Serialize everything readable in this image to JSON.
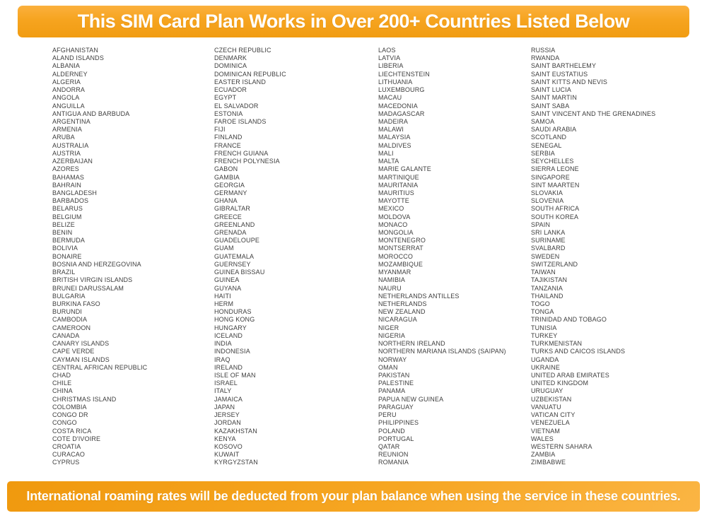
{
  "header": {
    "title": "This SIM Card Plan Works in Over 200+ Countries Listed Below"
  },
  "footer": {
    "note": "International roaming rates will be deducted from your plan balance when using the service in these countries."
  },
  "colors": {
    "banner_orange": "#f6a41f",
    "banner_orange_light": "#fbb03d",
    "banner_orange_dark": "#f0990e",
    "banner_text": "#ffffff",
    "country_text": "#3e3e3e",
    "page_background": "#ffffff"
  },
  "country_columns": {
    "col1": [
      "AFGHANISTAN",
      "ALAND ISLANDS",
      "ALBANIA",
      "ALDERNEY",
      "ALGERIA",
      "ANDORRA",
      "ANGOLA",
      "ANGUILLA",
      "ANTIGUA AND BARBUDA",
      "ARGENTINA",
      "ARMENIA",
      "ARUBA",
      "AUSTRALIA",
      "AUSTRIA",
      "AZERBAIJAN",
      "AZORES",
      "BAHAMAS",
      "BAHRAIN",
      "BANGLADESH",
      "BARBADOS",
      "BELARUS",
      "BELGIUM",
      "BELIZE",
      "BENIN",
      "BERMUDA",
      "BOLIVIA",
      "BONAIRE",
      "BOSNIA AND HERZEGOVINA",
      "BRAZIL",
      "BRITISH VIRGIN ISLANDS",
      "BRUNEI DARUSSALAM",
      "BULGARIA",
      "BURKINA FASO",
      "BURUNDI",
      "CAMBODIA",
      "CAMEROON",
      "CANADA",
      "CANARY ISLANDS",
      "CAPE VERDE",
      "CAYMAN ISLANDS",
      "CENTRAL AFRICAN REPUBLIC",
      "CHAD",
      "CHILE",
      "CHINA",
      "CHRISTMAS ISLAND",
      "COLOMBIA",
      "CONGO DR",
      "CONGO",
      "COSTA RICA",
      "COTE D'IVOIRE",
      "CROATIA",
      "CURACAO",
      "CYPRUS"
    ],
    "col2": [
      "CZECH REPUBLIC",
      "DENMARK",
      "DOMINICA",
      "DOMINICAN REPUBLIC",
      "EASTER ISLAND",
      "ECUADOR",
      "EGYPT",
      "EL SALVADOR",
      "ESTONIA",
      "FAROE ISLANDS",
      "FIJI",
      "FINLAND",
      "FRANCE",
      "FRENCH GUIANA",
      "FRENCH POLYNESIA",
      "GABON",
      "GAMBIA",
      "GEORGIA",
      "GERMANY",
      "GHANA",
      "GIBRALTAR",
      "GREECE",
      "GREENLAND",
      "GRENADA",
      "GUADELOUPE",
      "GUAM",
      "GUATEMALA",
      "GUERNSEY",
      "GUINEA BISSAU",
      "GUINEA",
      "GUYANA",
      "HAITI",
      "HERM",
      "HONDURAS",
      "HONG KONG",
      "HUNGARY",
      "ICELAND",
      "INDIA",
      "INDONESIA",
      "IRAQ",
      "IRELAND",
      "ISLE OF MAN",
      "ISRAEL",
      "ITALY",
      "JAMAICA",
      "JAPAN",
      "JERSEY",
      "JORDAN",
      "KAZAKHSTAN",
      "KENYA",
      "KOSOVO",
      "KUWAIT",
      "KYRGYZSTAN"
    ],
    "col3": [
      "LAOS",
      "LATVIA",
      "LIBERIA",
      "LIECHTENSTEIN",
      "LITHUANIA",
      "LUXEMBOURG",
      "MACAU",
      "MACEDONIA",
      "MADAGASCAR",
      "MADEIRA",
      "MALAWI",
      "MALAYSIA",
      "MALDIVES",
      "MALI",
      "MALTA",
      "MARIE GALANTE",
      "MARTINIQUE",
      "MAURITANIA",
      "MAURITIUS",
      "MAYOTTE",
      "MEXICO",
      "MOLDOVA",
      "MONACO",
      "MONGOLIA",
      "MONTENEGRO",
      "MONTSERRAT",
      "MOROCCO",
      "MOZAMBIQUE",
      "MYANMAR",
      "NAMIBIA",
      "NAURU",
      "NETHERLANDS ANTILLES",
      "NETHERLANDS",
      "NEW ZEALAND",
      "NICARAGUA",
      "NIGER",
      "NIGERIA",
      "NORTHERN IRELAND",
      "NORTHERN MARIANA ISLANDS (SAIPAN)",
      "NORWAY",
      "OMAN",
      "PAKISTAN",
      "PALESTINE",
      "PANAMA",
      "PAPUA NEW GUINEA",
      "PARAGUAY",
      "PERU",
      "PHILIPPINES",
      "POLAND",
      "PORTUGAL",
      "QATAR",
      "REUNION",
      "ROMANIA"
    ],
    "col4": [
      "RUSSIA",
      "RWANDA",
      "SAINT BARTHELEMY",
      "SAINT EUSTATIUS",
      "SAINT KITTS AND NEVIS",
      "SAINT LUCIA",
      "SAINT MARTIN",
      "SAINT SABA",
      "SAINT VINCENT AND THE GRENADINES",
      "SAMOA",
      "SAUDI ARABIA",
      "SCOTLAND",
      "SENEGAL",
      "SERBIA",
      "SEYCHELLES",
      "SIERRA LEONE",
      "SINGAPORE",
      "SINT MAARTEN",
      "SLOVAKIA",
      "SLOVENIA",
      "SOUTH AFRICA",
      "SOUTH KOREA",
      "SPAIN",
      "SRI LANKA",
      "SURINAME",
      "SVALBARD",
      "SWEDEN",
      "SWITZERLAND",
      "TAIWAN",
      "TAJIKISTAN",
      "TANZANIA",
      "THAILAND",
      "TOGO",
      "TONGA",
      "TRINIDAD AND TOBAGO",
      "TUNISIA",
      "TURKEY",
      "TURKMENISTAN",
      "TURKS AND CAICOS ISLANDS",
      "UGANDA",
      "UKRAINE",
      "UNITED ARAB EMIRATES",
      "UNITED KINGDOM",
      "URUGUAY",
      "UZBEKISTAN",
      "VANUATU",
      "VATICAN CITY",
      "VENEZUELA",
      "VIETNAM",
      "WALES",
      "WESTERN SAHARA",
      "ZAMBIA",
      "ZIMBABWE"
    ]
  }
}
